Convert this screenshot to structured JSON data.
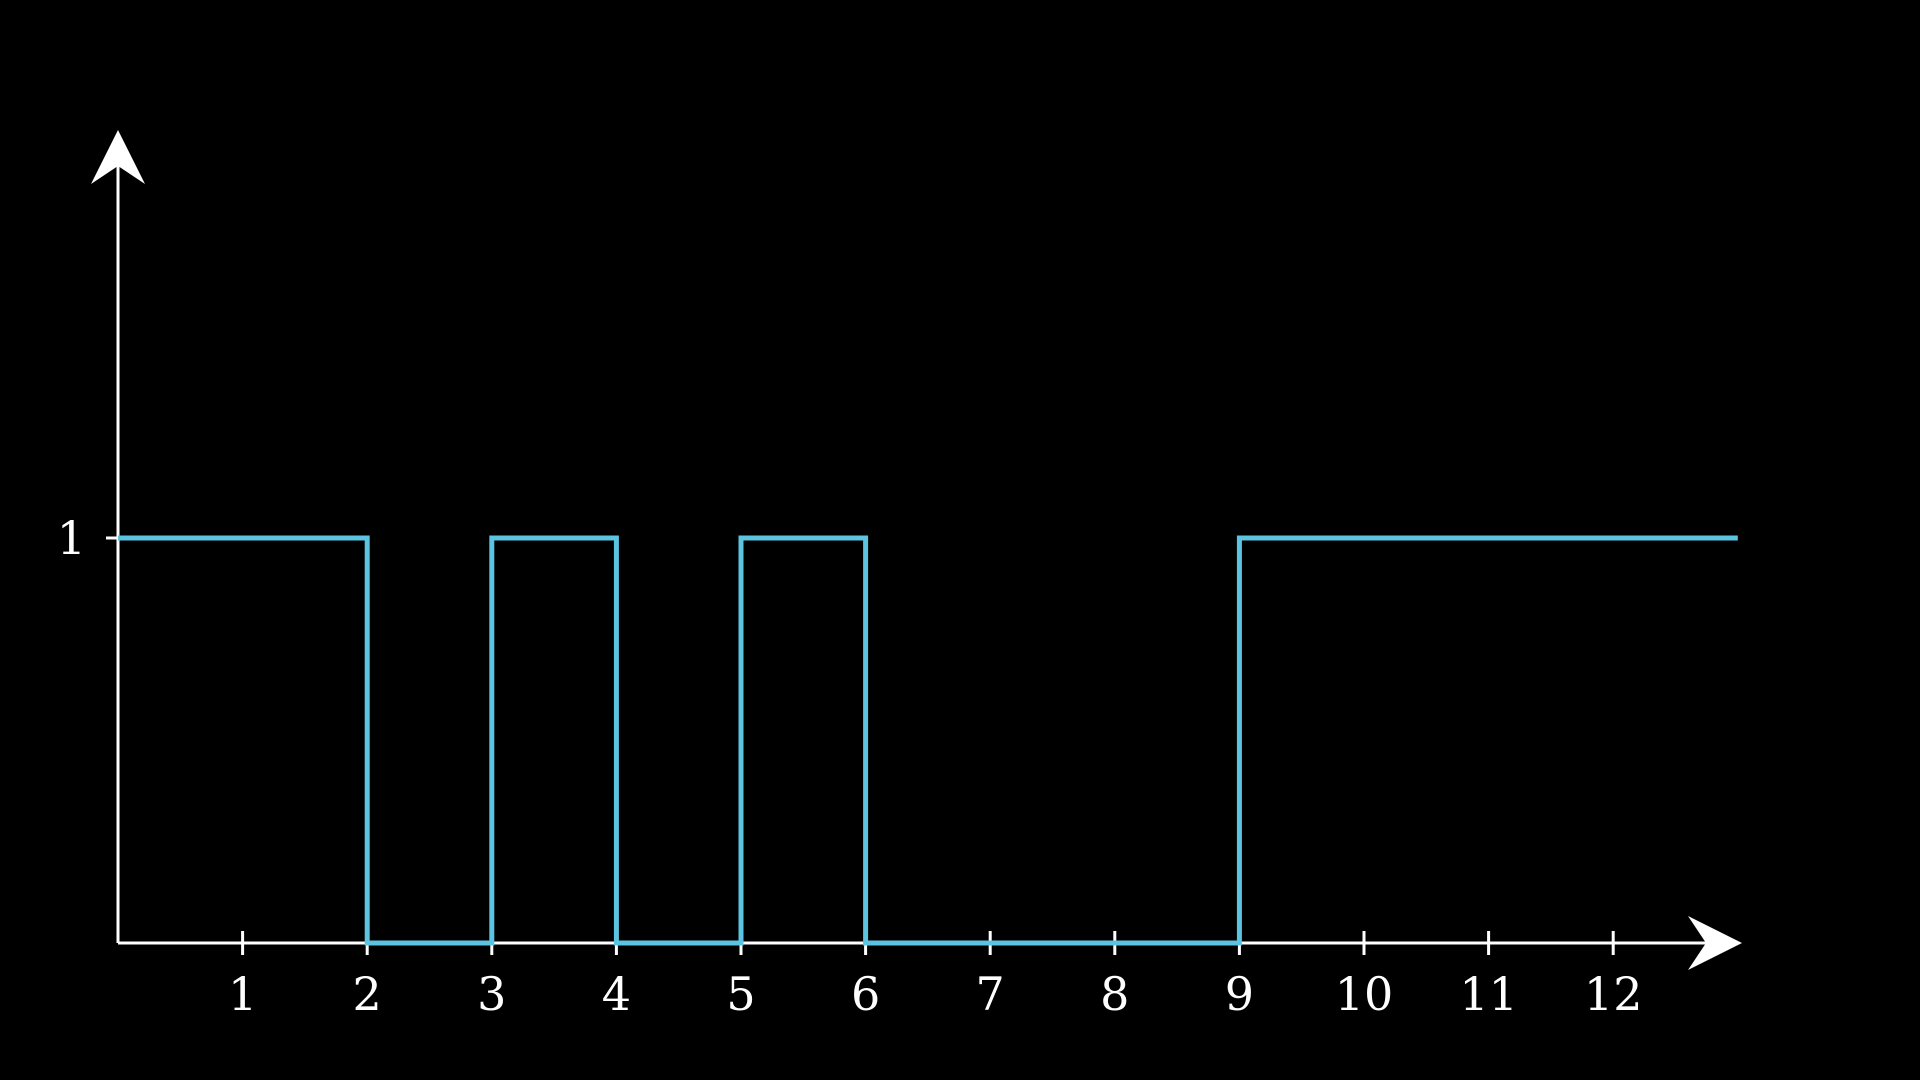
{
  "chart_data": {
    "type": "line",
    "step": true,
    "title": "",
    "xlabel": "",
    "ylabel": "",
    "xlim": [
      0,
      13
    ],
    "ylim": [
      0,
      1
    ],
    "x_ticks": [
      1,
      2,
      3,
      4,
      5,
      6,
      7,
      8,
      9,
      10,
      11,
      12
    ],
    "x_tick_labels": [
      "1",
      "2",
      "3",
      "4",
      "5",
      "6",
      "7",
      "8",
      "9",
      "10",
      "11",
      "12"
    ],
    "y_ticks": [
      1
    ],
    "y_tick_labels": [
      "1"
    ],
    "series": [
      {
        "x": [
          0,
          2,
          2,
          3,
          3,
          4,
          4,
          5,
          5,
          6,
          6,
          9,
          9,
          13
        ],
        "y": [
          1,
          1,
          0,
          0,
          1,
          1,
          0,
          0,
          1,
          1,
          0,
          0,
          1,
          1
        ]
      }
    ],
    "grid": false,
    "colors": {
      "background": "#000000",
      "axes": "#ffffff",
      "series": "#5bc4e0"
    }
  }
}
